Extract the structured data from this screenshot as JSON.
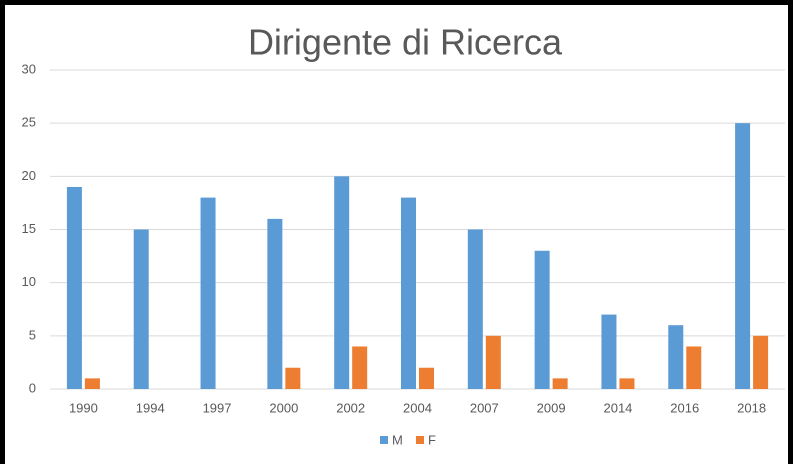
{
  "chart_data": {
    "type": "bar",
    "title": "Dirigente di Ricerca",
    "categories": [
      "1990",
      "1994",
      "1997",
      "2000",
      "2002",
      "2004",
      "2007",
      "2009",
      "2014",
      "2016",
      "2018"
    ],
    "series": [
      {
        "name": "M",
        "color": "#5b9bd5",
        "values": [
          19,
          15,
          18,
          16,
          20,
          18,
          15,
          13,
          7,
          6,
          25
        ]
      },
      {
        "name": "F",
        "color": "#ed7d31",
        "values": [
          1,
          0,
          0,
          2,
          4,
          2,
          5,
          1,
          1,
          4,
          5
        ]
      }
    ],
    "ylim": [
      0,
      30
    ],
    "yticks": [
      0,
      5,
      10,
      15,
      20,
      25,
      30
    ],
    "grid": true,
    "legend": "bottom"
  }
}
